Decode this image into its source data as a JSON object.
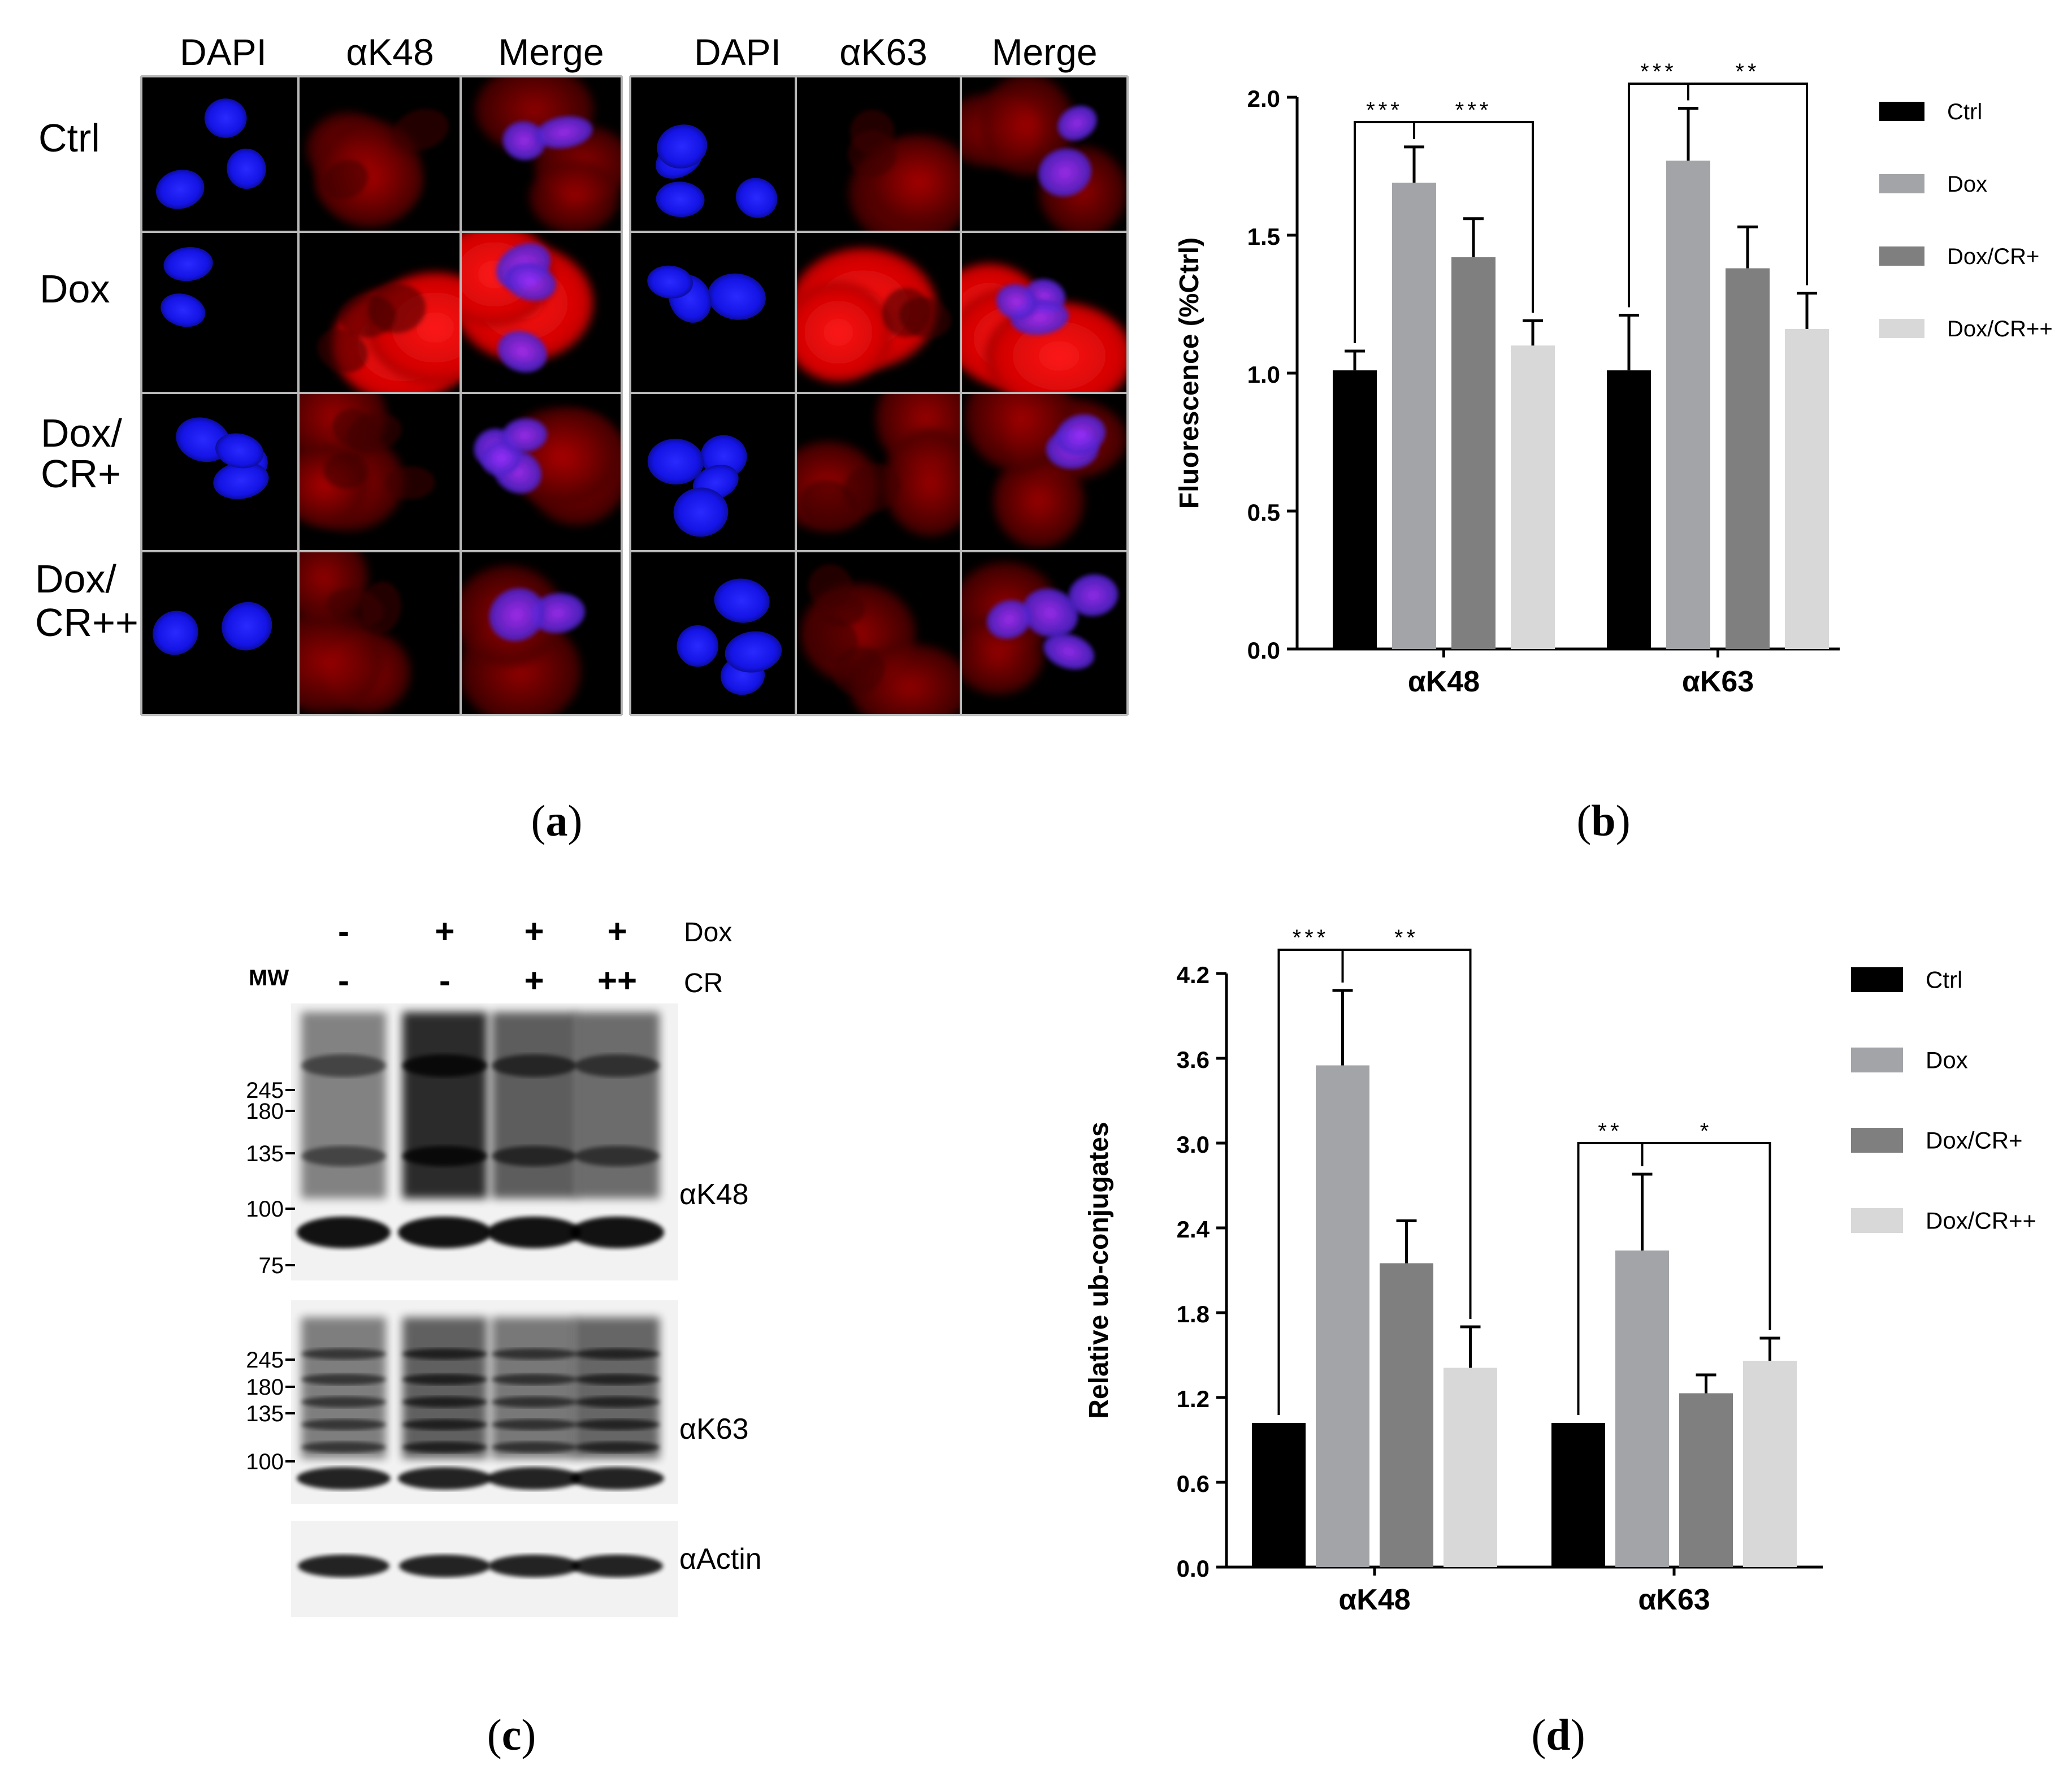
{
  "panel_a": {
    "label_open": "(",
    "label_letter": "a",
    "label_close": ")",
    "left_headers": [
      "DAPI",
      "αK48",
      "Merge"
    ],
    "right_headers": [
      "DAPI",
      "αK63",
      "Merge"
    ],
    "rows": [
      "Ctrl",
      "Dox",
      "Dox/",
      "CR+",
      "Dox/",
      "CR++"
    ],
    "colors": {
      "nucleus": "#1a1aff",
      "stain": "#e00000",
      "background": "#000000",
      "grid": "#b9b9b9"
    }
  },
  "panel_b": {
    "label_open": "(",
    "label_letter": "b",
    "label_close": ")"
  },
  "panel_c": {
    "label_open": "(",
    "label_letter": "c",
    "label_close": ")",
    "mw_label": "MW",
    "dox_label": "Dox",
    "cr_label": "CR",
    "dox_signs": [
      "-",
      "+",
      "+",
      "+"
    ],
    "cr_signs": [
      "-",
      "-",
      "+",
      "++"
    ],
    "k48_markers": [
      "245",
      "180",
      "135",
      "100",
      "75"
    ],
    "k63_markers": [
      "245",
      "180",
      "135",
      "100"
    ],
    "blot_labels": [
      "αK48",
      "αK63",
      "αActin"
    ]
  },
  "panel_d": {
    "label_open": "(",
    "label_letter": "d",
    "label_close": ")"
  },
  "chart_data": [
    {
      "type": "bar",
      "ylabel": "Fluorescence (%Ctrl)",
      "categories": [
        "αK48",
        "αK63"
      ],
      "series": [
        {
          "name": "Ctrl",
          "values": [
            1.01,
            1.01
          ],
          "errors": [
            0.07,
            0.2
          ],
          "color": "#000000"
        },
        {
          "name": "Dox",
          "values": [
            1.69,
            1.77
          ],
          "errors": [
            0.13,
            0.19
          ],
          "color": "#a3a4a8"
        },
        {
          "name": "Dox/CR+",
          "values": [
            1.42,
            1.38
          ],
          "errors": [
            0.14,
            0.15
          ],
          "color": "#7f7f7f"
        },
        {
          "name": "Dox/CR++",
          "values": [
            1.1,
            1.16
          ],
          "errors": [
            0.09,
            0.13
          ],
          "color": "#d8d8d8"
        }
      ],
      "ylim": [
        0,
        2.0
      ],
      "yticks": [
        "0.0",
        "0.5",
        "1.0",
        "1.5",
        "2.0"
      ],
      "significance": [
        {
          "category": 0,
          "from": 0,
          "to": 1,
          "stars": "***"
        },
        {
          "category": 0,
          "from": 1,
          "to": 3,
          "stars": "***"
        },
        {
          "category": 1,
          "from": 0,
          "to": 1,
          "stars": "***"
        },
        {
          "category": 1,
          "from": 1,
          "to": 3,
          "stars": "**"
        }
      ],
      "legend_placement": "right"
    },
    {
      "type": "bar",
      "ylabel": "Relative ub-conjugates",
      "categories": [
        "αK48",
        "αK63"
      ],
      "series": [
        {
          "name": "Ctrl",
          "values": [
            1.02,
            1.02
          ],
          "errors": [
            0,
            0
          ],
          "color": "#000000"
        },
        {
          "name": "Dox",
          "values": [
            3.55,
            2.24
          ],
          "errors": [
            0.53,
            0.54
          ],
          "color": "#a3a4a8"
        },
        {
          "name": "Dox/CR+",
          "values": [
            2.15,
            1.23
          ],
          "errors": [
            0.3,
            0.13
          ],
          "color": "#7f7f7f"
        },
        {
          "name": "Dox/CR++",
          "values": [
            1.41,
            1.46
          ],
          "errors": [
            0.29,
            0.16
          ],
          "color": "#d8d8d8"
        }
      ],
      "ylim": [
        0,
        4.2
      ],
      "yticks": [
        "0.0",
        "0.6",
        "1.2",
        "1.8",
        "2.4",
        "3.0",
        "3.6",
        "4.2"
      ],
      "significance": [
        {
          "category": 0,
          "from": 0,
          "to": 1,
          "stars": "***"
        },
        {
          "category": 0,
          "from": 1,
          "to": 3,
          "stars": "**"
        },
        {
          "category": 1,
          "from": 0,
          "to": 1,
          "stars": "**"
        },
        {
          "category": 1,
          "from": 1,
          "to": 3,
          "stars": "*"
        }
      ],
      "legend_placement": "right"
    }
  ]
}
